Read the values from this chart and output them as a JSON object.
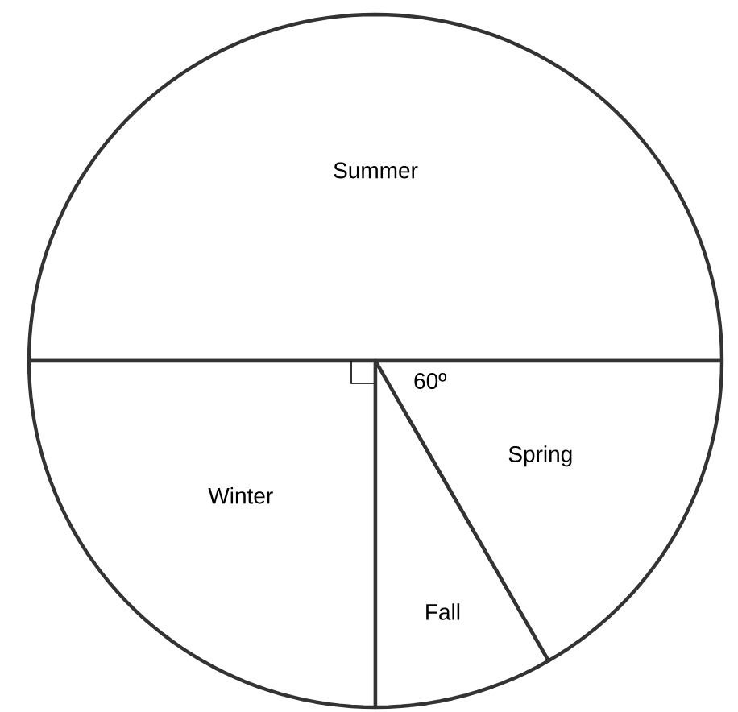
{
  "chart_data": {
    "type": "pie",
    "categories": [
      "Summer",
      "Winter",
      "Fall",
      "Spring"
    ],
    "values": [
      50,
      25,
      8.33,
      16.67
    ],
    "colors": [
      "#ffffff",
      "#ffffff",
      "#ffffff",
      "#ffffff"
    ],
    "annotations": [
      "60º"
    ]
  }
}
